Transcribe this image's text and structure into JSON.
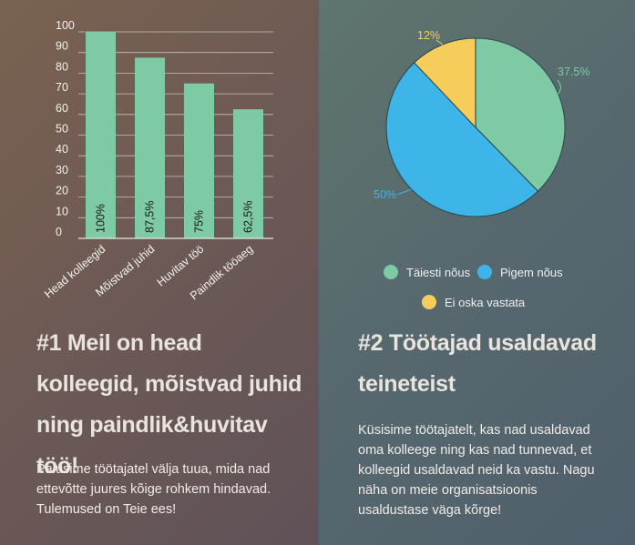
{
  "colors": {
    "bar": "#7ecaa4",
    "gridline": "#cfd4d0",
    "tick_text": "#f2f2ee",
    "pie_green": "#7ecaa4",
    "pie_blue": "#3db5e8",
    "pie_yellow": "#f6cd5b",
    "pie_stroke": "#2f4a50"
  },
  "left": {
    "heading": "#1 Meil on head kolleegid, mõistvad juhid ning paindlik&huvitav töö!",
    "text": "Palusime töötajatel välja tuua, mida nad ettevõtte juures kõige rohkem hindavad. Tulemused on Teie ees!"
  },
  "right": {
    "heading": "#2 Töötajad usaldavad teineteist",
    "text": "Küsisime töötajatelt, kas nad usaldavad oma kolleege ning kas nad tunnevad, et kolleegid usaldavad neid ka vastu. Nagu näha on meie organisatsioonis usaldustase väga kõrge!",
    "legend": [
      {
        "label": "Täiesti nõus",
        "color": "#7ecaa4"
      },
      {
        "label": "Pigem nõus",
        "color": "#3db5e8"
      },
      {
        "label": "Ei oska vastata",
        "color": "#f6cd5b"
      }
    ]
  },
  "chart_data": [
    {
      "type": "bar",
      "categories": [
        "Head kolleegid",
        "Mõistvad juhid",
        "Huvitav töö",
        "Paindlik tööaeg"
      ],
      "values": [
        100,
        87.5,
        75,
        62.5
      ],
      "data_labels": [
        "100%",
        "87,5%",
        "75%",
        "62,5%"
      ],
      "ylim": [
        0,
        100
      ],
      "yticks": [
        "0",
        "10",
        "20",
        "30",
        "40",
        "50",
        "60",
        "70",
        "80",
        "90",
        "100"
      ],
      "grid": true,
      "title": "",
      "xlabel": "",
      "ylabel": ""
    },
    {
      "type": "pie",
      "labels": [
        "Täiesti nõus",
        "Pigem nõus",
        "Ei oska vastata"
      ],
      "values": [
        37.5,
        50,
        12
      ],
      "data_labels": [
        "37.5%",
        "50%",
        "12%"
      ],
      "legend_position": "bottom",
      "title": ""
    }
  ]
}
